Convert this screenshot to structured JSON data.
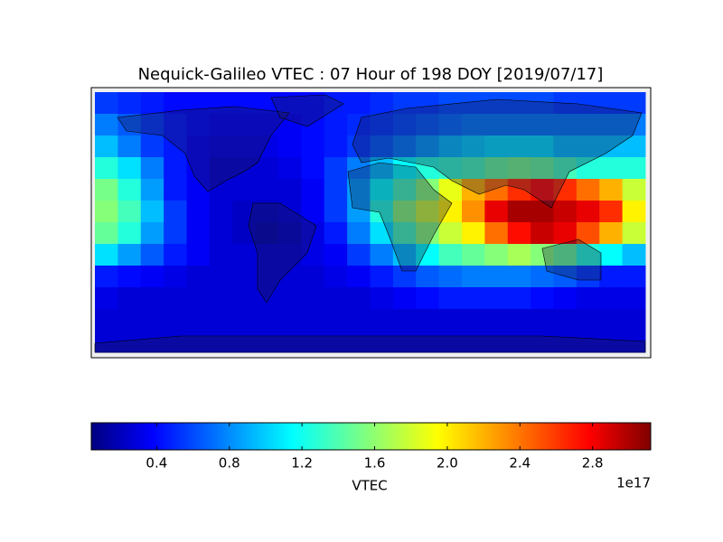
{
  "chart_data": {
    "type": "heatmap",
    "title": "Nequick-Galileo VTEC : 07 Hour of 198 DOY [2019/07/17]",
    "colormap": "jet",
    "values": [
      [
        0.6,
        0.55,
        0.5,
        0.45,
        0.45,
        0.45,
        0.45,
        0.45,
        0.45,
        0.45,
        0.5,
        0.5,
        0.55,
        0.6,
        0.6,
        0.65,
        0.65,
        0.65,
        0.65,
        0.65,
        0.6,
        0.6,
        0.6,
        0.6
      ],
      [
        0.8,
        0.7,
        0.6,
        0.5,
        0.45,
        0.4,
        0.4,
        0.4,
        0.4,
        0.45,
        0.5,
        0.55,
        0.6,
        0.65,
        0.7,
        0.75,
        0.8,
        0.8,
        0.8,
        0.8,
        0.8,
        0.8,
        0.8,
        0.8
      ],
      [
        1.0,
        0.8,
        0.6,
        0.5,
        0.4,
        0.35,
        0.35,
        0.35,
        0.4,
        0.45,
        0.5,
        0.6,
        0.7,
        0.8,
        0.9,
        1.0,
        1.05,
        1.1,
        1.1,
        1.1,
        1.0,
        1.0,
        1.0,
        1.0
      ],
      [
        1.3,
        1.1,
        0.8,
        0.5,
        0.4,
        0.3,
        0.3,
        0.3,
        0.35,
        0.45,
        0.6,
        0.8,
        1.0,
        1.2,
        1.3,
        1.35,
        1.4,
        1.5,
        1.55,
        1.5,
        1.4,
        1.3,
        1.3,
        1.3
      ],
      [
        1.55,
        1.3,
        0.9,
        0.5,
        0.4,
        0.3,
        0.3,
        0.3,
        0.3,
        0.4,
        0.6,
        0.9,
        1.2,
        1.4,
        1.6,
        1.9,
        2.2,
        2.4,
        2.6,
        2.7,
        2.6,
        2.4,
        2.2,
        1.8
      ],
      [
        1.6,
        1.4,
        1.0,
        0.6,
        0.4,
        0.3,
        0.25,
        0.25,
        0.3,
        0.4,
        0.6,
        0.9,
        1.3,
        1.6,
        1.8,
        2.0,
        2.3,
        2.8,
        3.0,
        3.0,
        2.9,
        2.8,
        2.6,
        2.0
      ],
      [
        1.5,
        1.3,
        0.9,
        0.6,
        0.4,
        0.3,
        0.25,
        0.2,
        0.25,
        0.35,
        0.5,
        0.8,
        1.1,
        1.4,
        1.6,
        1.8,
        2.0,
        2.4,
        2.7,
        2.9,
        2.8,
        2.5,
        2.2,
        1.8
      ],
      [
        1.1,
        0.9,
        0.7,
        0.5,
        0.4,
        0.3,
        0.3,
        0.3,
        0.3,
        0.35,
        0.4,
        0.6,
        0.8,
        1.0,
        1.2,
        1.4,
        1.5,
        1.6,
        1.7,
        1.6,
        1.5,
        1.3,
        1.2,
        1.0
      ],
      [
        0.5,
        0.45,
        0.4,
        0.35,
        0.3,
        0.3,
        0.3,
        0.3,
        0.3,
        0.3,
        0.35,
        0.4,
        0.5,
        0.6,
        0.7,
        0.75,
        0.8,
        0.8,
        0.8,
        0.75,
        0.7,
        0.6,
        0.5,
        0.5
      ],
      [
        0.35,
        0.3,
        0.3,
        0.3,
        0.3,
        0.3,
        0.3,
        0.3,
        0.3,
        0.3,
        0.3,
        0.3,
        0.35,
        0.4,
        0.45,
        0.5,
        0.5,
        0.5,
        0.5,
        0.45,
        0.4,
        0.35,
        0.35,
        0.35
      ],
      [
        0.3,
        0.3,
        0.3,
        0.3,
        0.3,
        0.3,
        0.3,
        0.3,
        0.3,
        0.3,
        0.3,
        0.3,
        0.3,
        0.3,
        0.3,
        0.3,
        0.3,
        0.3,
        0.3,
        0.3,
        0.3,
        0.3,
        0.3,
        0.3
      ],
      [
        0.3,
        0.3,
        0.3,
        0.3,
        0.3,
        0.3,
        0.3,
        0.3,
        0.3,
        0.3,
        0.3,
        0.3,
        0.3,
        0.3,
        0.3,
        0.3,
        0.3,
        0.3,
        0.3,
        0.3,
        0.3,
        0.3,
        0.3,
        0.3
      ]
    ],
    "colorbar": {
      "label": "VTEC",
      "offset_label": "1e17",
      "clim": [
        0.04,
        3.12
      ],
      "ticks": [
        0.4,
        0.8,
        1.2,
        1.6,
        {
          "value": 2,
          "label": "2.0"
        },
        2.4,
        2.8
      ]
    }
  }
}
